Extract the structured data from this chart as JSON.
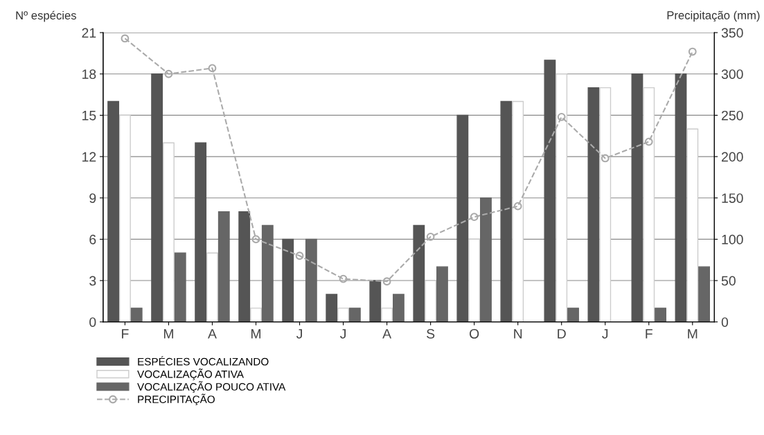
{
  "chart_data": {
    "type": "bar",
    "ylabel": "Nº espécies",
    "y2label": "Precipitação (mm)",
    "categories": [
      "F",
      "M",
      "A",
      "M",
      "J",
      "J",
      "A",
      "S",
      "O",
      "N",
      "D",
      "J",
      "F",
      "M"
    ],
    "series": [
      {
        "name": "ESPÉCIES VOCALIZANDO",
        "color": "#555555",
        "values": [
          16,
          18,
          13,
          8,
          6,
          2,
          3,
          7,
          15,
          16,
          19,
          17,
          18,
          18
        ]
      },
      {
        "name": "VOCALIZAÇÃO ATIVA",
        "color": "#ffffff",
        "values": [
          15,
          13,
          5,
          1,
          0,
          1,
          1,
          3,
          6,
          16,
          18,
          17,
          17,
          14
        ]
      },
      {
        "name": "VOCALIZAÇÃO POUCO ATIVA",
        "color": "#666666",
        "values": [
          1,
          5,
          8,
          7,
          6,
          1,
          2,
          4,
          9,
          0,
          1,
          0,
          1,
          4
        ]
      },
      {
        "name": "PRECIPITAÇÃO",
        "type": "line",
        "axis": "y2",
        "color": "#aaaaaa",
        "marker": "circle",
        "line_style": "dashed",
        "values": [
          343,
          300,
          307,
          100,
          80,
          52,
          49,
          103,
          127,
          140,
          248,
          198,
          218,
          327
        ]
      }
    ],
    "ylim": [
      0,
      21
    ],
    "yticks": [
      0,
      3,
      6,
      9,
      12,
      15,
      18,
      21
    ],
    "y2lim": [
      0,
      350
    ],
    "y2ticks": [
      0,
      50,
      100,
      150,
      200,
      250,
      300,
      350
    ],
    "grid": "y",
    "legend": "bottom left"
  }
}
